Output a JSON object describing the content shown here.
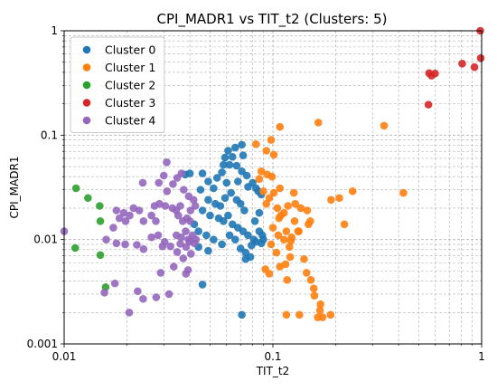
{
  "chart_data": {
    "type": "scatter",
    "title": "CPI_MADR1 vs TIT_t2 (Clusters: 5)",
    "xlabel": "TIT_t2",
    "ylabel": "CPI_MADR1",
    "xscale": "log",
    "yscale": "log",
    "xlim": [
      0.01,
      1
    ],
    "ylim": [
      0.001,
      1
    ],
    "grid": true,
    "legend_position": "top-left",
    "x_ticks": [
      {
        "value": 0.01,
        "label": "0.01"
      },
      {
        "value": 0.1,
        "label": "0.1"
      },
      {
        "value": 1,
        "label": "1"
      }
    ],
    "y_ticks": [
      {
        "value": 0.001,
        "label": "0.001"
      },
      {
        "value": 0.01,
        "label": "0.01"
      },
      {
        "value": 0.1,
        "label": "0.1"
      },
      {
        "value": 1,
        "label": "1"
      }
    ],
    "series": [
      {
        "name": "Cluster 0",
        "color": "#1f77b4",
        "points": [
          [
            0.061,
            0.071
          ],
          [
            0.066,
            0.076
          ],
          [
            0.071,
            0.081
          ],
          [
            0.059,
            0.061
          ],
          [
            0.064,
            0.062
          ],
          [
            0.072,
            0.064
          ],
          [
            0.038,
            0.042
          ],
          [
            0.04,
            0.043
          ],
          [
            0.046,
            0.043
          ],
          [
            0.049,
            0.036
          ],
          [
            0.052,
            0.031
          ],
          [
            0.054,
            0.039
          ],
          [
            0.058,
            0.052
          ],
          [
            0.062,
            0.052
          ],
          [
            0.067,
            0.051
          ],
          [
            0.071,
            0.045
          ],
          [
            0.075,
            0.041
          ],
          [
            0.08,
            0.035
          ],
          [
            0.083,
            0.031
          ],
          [
            0.085,
            0.029
          ],
          [
            0.088,
            0.027
          ],
          [
            0.045,
            0.03
          ],
          [
            0.049,
            0.024
          ],
          [
            0.053,
            0.022
          ],
          [
            0.056,
            0.021
          ],
          [
            0.059,
            0.025
          ],
          [
            0.063,
            0.028
          ],
          [
            0.067,
            0.024
          ],
          [
            0.07,
            0.022
          ],
          [
            0.073,
            0.019
          ],
          [
            0.046,
            0.019
          ],
          [
            0.05,
            0.017
          ],
          [
            0.055,
            0.016
          ],
          [
            0.058,
            0.015
          ],
          [
            0.061,
            0.017
          ],
          [
            0.064,
            0.014
          ],
          [
            0.068,
            0.013
          ],
          [
            0.072,
            0.012
          ],
          [
            0.076,
            0.011
          ],
          [
            0.081,
            0.01
          ],
          [
            0.086,
            0.012
          ],
          [
            0.089,
            0.011
          ],
          [
            0.042,
            0.014
          ],
          [
            0.044,
            0.012
          ],
          [
            0.048,
            0.011
          ],
          [
            0.052,
            0.01
          ],
          [
            0.057,
            0.009
          ],
          [
            0.062,
            0.011
          ],
          [
            0.066,
            0.01
          ],
          [
            0.07,
            0.0082
          ],
          [
            0.074,
            0.0075
          ],
          [
            0.078,
            0.0068
          ],
          [
            0.083,
            0.0095
          ],
          [
            0.088,
            0.0092
          ],
          [
            0.09,
            0.01
          ],
          [
            0.079,
            0.0088
          ],
          [
            0.074,
            0.0065
          ],
          [
            0.049,
            0.0078
          ],
          [
            0.044,
            0.0085
          ],
          [
            0.046,
            0.0037
          ],
          [
            0.071,
            0.0019
          ],
          [
            0.06,
            0.035
          ],
          [
            0.076,
            0.032
          ],
          [
            0.068,
            0.036
          ],
          [
            0.057,
            0.044
          ],
          [
            0.082,
            0.015
          ],
          [
            0.086,
            0.018
          ]
        ]
      },
      {
        "name": "Cluster 1",
        "color": "#ff7f0e",
        "points": [
          [
            0.108,
            0.12
          ],
          [
            0.098,
            0.09
          ],
          [
            0.083,
            0.082
          ],
          [
            0.093,
            0.071
          ],
          [
            0.101,
            0.065
          ],
          [
            0.165,
            0.132
          ],
          [
            0.088,
            0.045
          ],
          [
            0.094,
            0.042
          ],
          [
            0.099,
            0.04
          ],
          [
            0.086,
            0.038
          ],
          [
            0.108,
            0.031
          ],
          [
            0.126,
            0.028
          ],
          [
            0.09,
            0.029
          ],
          [
            0.101,
            0.028
          ],
          [
            0.096,
            0.025
          ],
          [
            0.093,
            0.022
          ],
          [
            0.105,
            0.02
          ],
          [
            0.113,
            0.018
          ],
          [
            0.128,
            0.022
          ],
          [
            0.136,
            0.02
          ],
          [
            0.146,
            0.019
          ],
          [
            0.118,
            0.021
          ],
          [
            0.109,
            0.017
          ],
          [
            0.107,
            0.016
          ],
          [
            0.127,
            0.015
          ],
          [
            0.151,
            0.015
          ],
          [
            0.19,
            0.024
          ],
          [
            0.208,
            0.025
          ],
          [
            0.241,
            0.029
          ],
          [
            0.22,
            0.014
          ],
          [
            0.1,
            0.013
          ],
          [
            0.106,
            0.011
          ],
          [
            0.116,
            0.012
          ],
          [
            0.132,
            0.012
          ],
          [
            0.113,
            0.01
          ],
          [
            0.12,
            0.0085
          ],
          [
            0.098,
            0.009
          ],
          [
            0.104,
            0.0075
          ],
          [
            0.121,
            0.0068
          ],
          [
            0.141,
            0.0065
          ],
          [
            0.115,
            0.0058
          ],
          [
            0.108,
            0.0055
          ],
          [
            0.092,
            0.0052
          ],
          [
            0.096,
            0.0047
          ],
          [
            0.117,
            0.0041
          ],
          [
            0.145,
            0.0048
          ],
          [
            0.152,
            0.0041
          ],
          [
            0.157,
            0.0034
          ],
          [
            0.158,
            0.0029
          ],
          [
            0.169,
            0.0024
          ],
          [
            0.168,
            0.0021
          ],
          [
            0.189,
            0.0019
          ],
          [
            0.134,
            0.0019
          ],
          [
            0.116,
            0.0019
          ],
          [
            0.164,
            0.0018
          ],
          [
            0.173,
            0.0018
          ],
          [
            0.133,
            0.012
          ],
          [
            0.148,
            0.014
          ],
          [
            0.123,
            0.0105
          ],
          [
            0.122,
            0.0097
          ],
          [
            0.422,
            0.028
          ],
          [
            0.341,
            0.123
          ]
        ]
      },
      {
        "name": "Cluster 2",
        "color": "#2ca02c",
        "points": [
          [
            0.0114,
            0.031
          ],
          [
            0.013,
            0.025
          ],
          [
            0.0148,
            0.021
          ],
          [
            0.0149,
            0.015
          ],
          [
            0.0113,
            0.0083
          ],
          [
            0.0149,
            0.0071
          ],
          [
            0.0158,
            0.0035
          ]
        ]
      },
      {
        "name": "Cluster 3",
        "color": "#d62728",
        "points": [
          [
            0.56,
            0.393
          ],
          [
            0.575,
            0.372
          ],
          [
            0.598,
            0.39
          ],
          [
            0.556,
            0.196
          ],
          [
            0.807,
            0.484
          ],
          [
            0.924,
            0.448
          ],
          [
            0.985,
            1.0
          ],
          [
            0.99,
            0.547
          ]
        ]
      },
      {
        "name": "Cluster 4",
        "color": "#9467bd",
        "points": [
          [
            0.01,
            0.012
          ],
          [
            0.0156,
            0.0031
          ],
          [
            0.0175,
            0.0038
          ],
          [
            0.0205,
            0.002
          ],
          [
            0.0225,
            0.0032
          ],
          [
            0.0239,
            0.0027
          ],
          [
            0.0276,
            0.0028
          ],
          [
            0.029,
            0.0048
          ],
          [
            0.0318,
            0.003
          ],
          [
            0.0335,
            0.0055
          ],
          [
            0.0348,
            0.0076
          ],
          [
            0.036,
            0.0091
          ],
          [
            0.0372,
            0.0066
          ],
          [
            0.0383,
            0.0047
          ],
          [
            0.0392,
            0.0051
          ],
          [
            0.0399,
            0.0096
          ],
          [
            0.0405,
            0.0073
          ],
          [
            0.0384,
            0.0085
          ],
          [
            0.031,
            0.055
          ],
          [
            0.0348,
            0.039
          ],
          [
            0.0365,
            0.043
          ],
          [
            0.03,
            0.041
          ],
          [
            0.0284,
            0.035
          ],
          [
            0.0332,
            0.034
          ],
          [
            0.0238,
            0.035
          ],
          [
            0.0311,
            0.029
          ],
          [
            0.0374,
            0.03
          ],
          [
            0.0395,
            0.026
          ],
          [
            0.0417,
            0.024
          ],
          [
            0.0425,
            0.021
          ],
          [
            0.0403,
            0.019
          ],
          [
            0.0388,
            0.016
          ],
          [
            0.037,
            0.015
          ],
          [
            0.0352,
            0.017
          ],
          [
            0.033,
            0.02
          ],
          [
            0.0305,
            0.021
          ],
          [
            0.0286,
            0.022
          ],
          [
            0.0271,
            0.021
          ],
          [
            0.0262,
            0.017
          ],
          [
            0.024,
            0.015
          ],
          [
            0.0229,
            0.019
          ],
          [
            0.0215,
            0.02
          ],
          [
            0.0206,
            0.017
          ],
          [
            0.0197,
            0.015
          ],
          [
            0.0184,
            0.016
          ],
          [
            0.0178,
            0.019
          ],
          [
            0.0193,
            0.018
          ],
          [
            0.0172,
            0.013
          ],
          [
            0.0159,
            0.01
          ],
          [
            0.0178,
            0.0092
          ],
          [
            0.0196,
            0.009
          ],
          [
            0.0223,
            0.0089
          ],
          [
            0.024,
            0.0081
          ],
          [
            0.0262,
            0.0105
          ],
          [
            0.0282,
            0.011
          ],
          [
            0.0303,
            0.0095
          ],
          [
            0.0323,
            0.0086
          ],
          [
            0.0345,
            0.011
          ],
          [
            0.0364,
            0.0105
          ],
          [
            0.0382,
            0.012
          ],
          [
            0.0394,
            0.01
          ],
          [
            0.0412,
            0.011
          ],
          [
            0.042,
            0.0092
          ],
          [
            0.0275,
            0.015
          ],
          [
            0.0344,
            0.019
          ],
          [
            0.036,
            0.021
          ],
          [
            0.0401,
            0.015
          ],
          [
            0.0428,
            0.01
          ],
          [
            0.0296,
            0.0086
          ]
        ]
      }
    ]
  }
}
